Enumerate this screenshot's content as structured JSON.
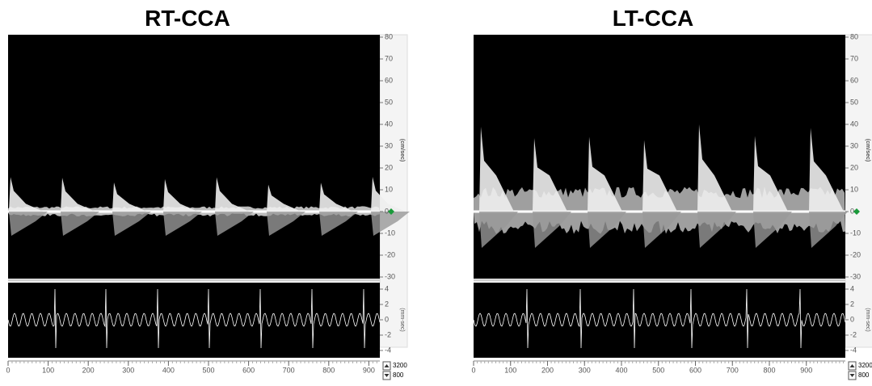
{
  "panels": [
    {
      "title": "RT-CCA",
      "velocity_axis": {
        "unit": "(cm/sec)",
        "ticks": [
          80,
          70,
          60,
          50,
          40,
          30,
          20,
          10,
          0,
          -10,
          -20,
          -30
        ]
      },
      "ecg_axis": {
        "unit": "(mm-sec)",
        "ticks": [
          4,
          2,
          0,
          -2,
          -4
        ]
      },
      "time_axis": {
        "ticks": [
          0,
          100,
          200,
          300,
          400,
          500,
          600,
          700,
          800,
          900
        ]
      },
      "buttons": [
        "3200",
        "800"
      ]
    },
    {
      "title": "LT-CCA",
      "velocity_axis": {
        "unit": "(cm/sec)",
        "ticks": [
          80,
          70,
          60,
          50,
          40,
          30,
          20,
          10,
          0,
          -10,
          -20,
          -30
        ]
      },
      "ecg_axis": {
        "unit": "(mm-sec)",
        "ticks": [
          4,
          2,
          0,
          -2,
          -4
        ]
      },
      "time_axis": {
        "ticks": [
          0,
          100,
          200,
          300,
          400,
          500,
          600,
          700,
          800,
          900
        ]
      },
      "buttons": [
        "3200",
        "800"
      ]
    }
  ]
}
